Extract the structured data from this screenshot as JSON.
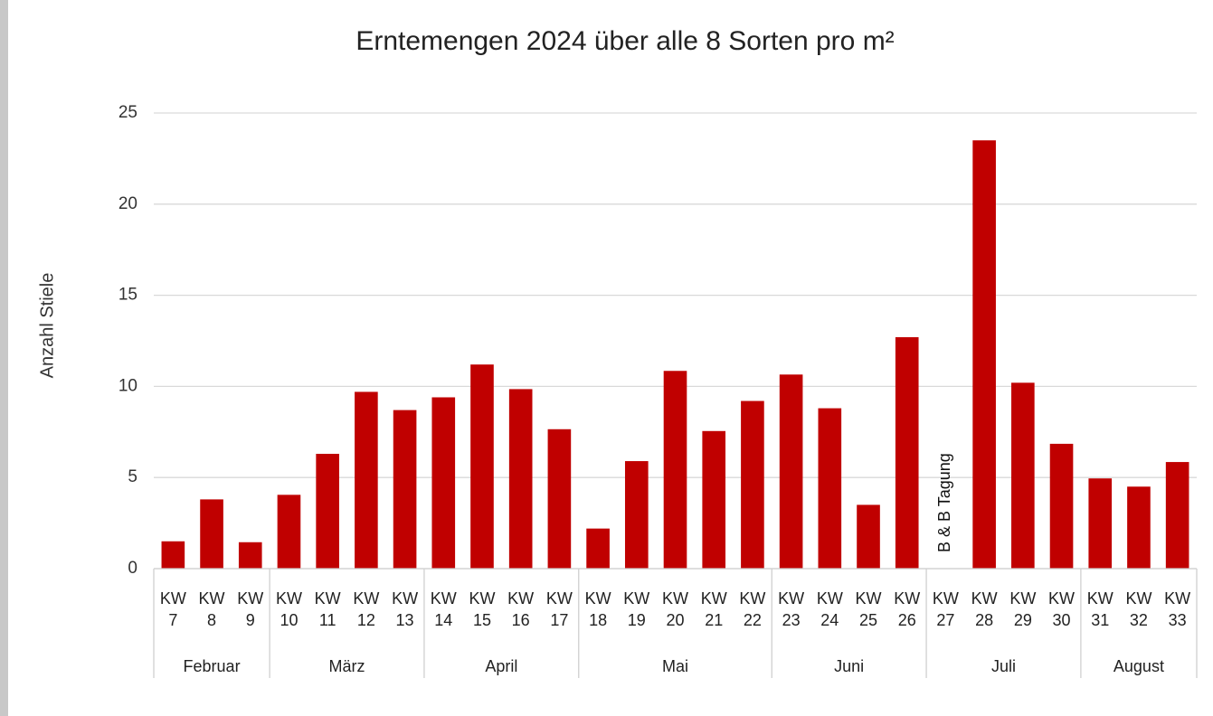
{
  "chart_data": {
    "type": "bar",
    "title": "Erntemengen 2024 über alle 8 Sorten pro m²",
    "y_label": "Anzahl Stiele",
    "color": "#c00000",
    "ylim": [
      0,
      25
    ],
    "yticks": [
      0,
      5,
      10,
      15,
      20,
      25
    ],
    "grid": true,
    "annotation": "B & B Tagung",
    "groups": [
      {
        "name": "Februar",
        "categories": [
          "KW 7",
          "KW 8",
          "KW 9"
        ],
        "values": [
          1.5,
          3.8,
          1.45
        ]
      },
      {
        "name": "März",
        "categories": [
          "KW 10",
          "KW 11",
          "KW 12",
          "KW 13"
        ],
        "values": [
          4.05,
          6.3,
          9.7,
          8.7
        ]
      },
      {
        "name": "April",
        "categories": [
          "KW 14",
          "KW 15",
          "KW 16",
          "KW 17"
        ],
        "values": [
          9.4,
          11.2,
          9.85,
          7.65
        ]
      },
      {
        "name": "Mai",
        "categories": [
          "KW 18",
          "KW 19",
          "KW 20",
          "KW 21",
          "KW 22"
        ],
        "values": [
          2.2,
          5.9,
          10.85,
          7.55,
          9.2
        ]
      },
      {
        "name": "Juni",
        "categories": [
          "KW 23",
          "KW 24",
          "KW 25",
          "KW 26"
        ],
        "values": [
          10.65,
          8.8,
          3.5,
          12.7
        ]
      },
      {
        "name": "Juli",
        "categories": [
          "KW 27",
          "KW 28",
          "KW 29",
          "KW 30"
        ],
        "values": [
          null,
          23.5,
          10.2,
          6.85
        ]
      },
      {
        "name": "August",
        "categories": [
          "KW 31",
          "KW 32",
          "KW 33"
        ],
        "values": [
          4.95,
          4.5,
          5.85
        ]
      }
    ]
  }
}
